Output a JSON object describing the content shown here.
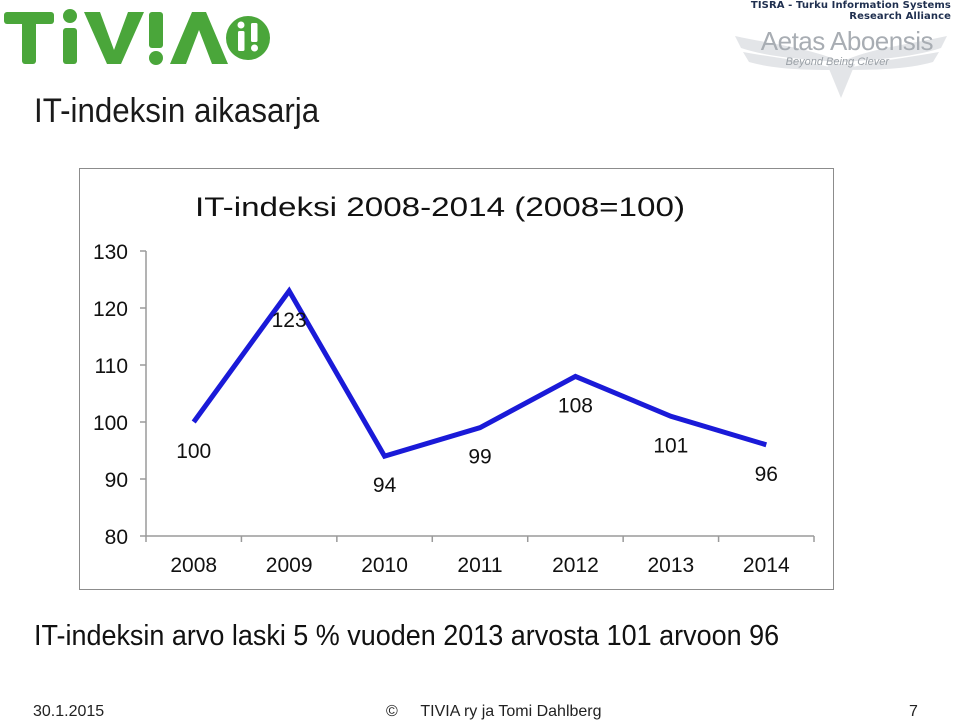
{
  "header": {
    "logo_text": "TiViA",
    "partner_line": "TISRA - Turku Information Systems Research Alliance",
    "partner_name": "Aetas Aboensis",
    "partner_tagline": "Beyond Being Clever"
  },
  "slide": {
    "title": "IT-indeksin aikasarja",
    "summary": "IT-indeksin arvo laski 5 % vuoden 2013 arvosta 101 arvoon 96"
  },
  "footer": {
    "date": "30.1.2015",
    "copyright_symbol": "©",
    "author": "TIVIA ry ja Tomi Dahlberg",
    "page": "7"
  },
  "colors": {
    "line": "#1a1ad8",
    "logo_green": "#4aa63a",
    "partner_grey": "#a8adb3"
  },
  "chart_data": {
    "type": "line",
    "title": "IT-indeksi 2008-2014 (2008=100)",
    "categories": [
      "2008",
      "2009",
      "2010",
      "2011",
      "2012",
      "2013",
      "2014"
    ],
    "series": [
      {
        "values": [
          100,
          123,
          94,
          99,
          108,
          101,
          96
        ]
      }
    ],
    "data_labels": [
      "100",
      "123",
      "94",
      "99",
      "108",
      "101",
      "96"
    ],
    "y_ticks": [
      80,
      90,
      100,
      110,
      120,
      130
    ],
    "ylim": [
      80,
      130
    ],
    "xlabel": "",
    "ylabel": "",
    "grid": false,
    "legend": "none"
  }
}
